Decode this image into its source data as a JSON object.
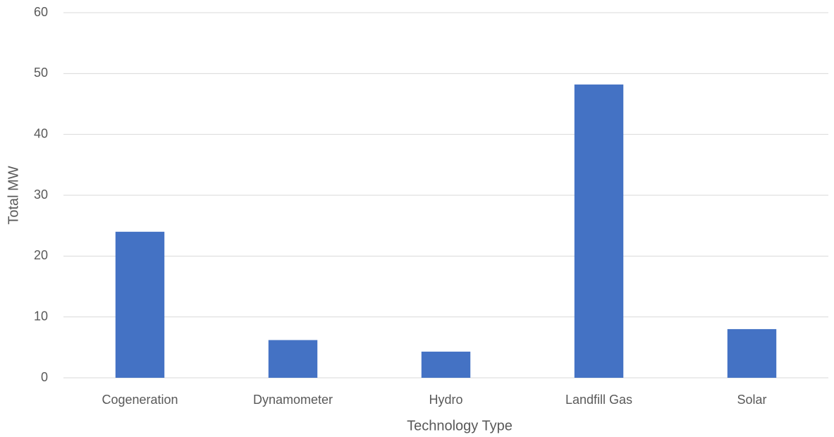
{
  "chart_data": {
    "type": "bar",
    "categories": [
      "Cogeneration",
      "Dynamometer",
      "Hydro",
      "Landfill Gas",
      "Solar"
    ],
    "values": [
      24,
      6.2,
      4.3,
      48.2,
      8
    ],
    "color": "#4472c4",
    "xlabel": "Technology Type",
    "ylabel": "Total MW",
    "ylim": [
      0,
      60
    ],
    "yticks": [
      0,
      10,
      20,
      30,
      40,
      50,
      60
    ],
    "grid": true
  }
}
